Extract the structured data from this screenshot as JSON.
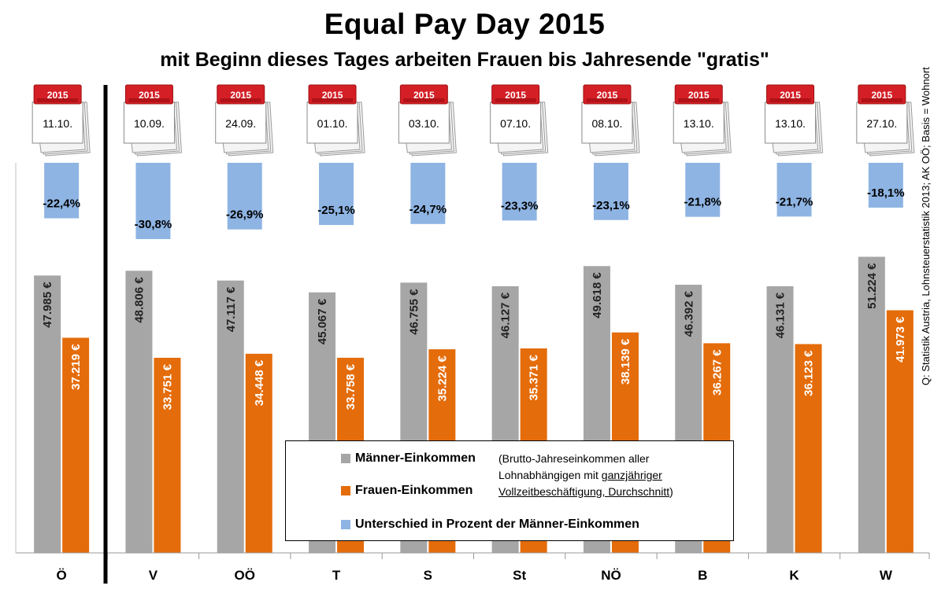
{
  "title": "Equal Pay Day 2015",
  "subtitle": "mit Beginn dieses Tages arbeiten Frauen bis Jahresende \"gratis\"",
  "source": "Q: Statistik Austria, Lohnsteuerstatistik 2013; AK OÖ; Basis = Wohnort",
  "calendar_year": "2015",
  "colors": {
    "men": "#a6a6a6",
    "women": "#e46c0a",
    "diff": "#8eb4e3"
  },
  "chart_data": {
    "type": "bar",
    "categories": [
      "Ö",
      "V",
      "OÖ",
      "T",
      "S",
      "St",
      "NÖ",
      "B",
      "K",
      "W"
    ],
    "dates": [
      "11.10.",
      "10.09.",
      "24.09.",
      "01.10.",
      "03.10.",
      "07.10.",
      "08.10.",
      "13.10.",
      "13.10.",
      "27.10."
    ],
    "series": [
      {
        "name": "Männer-Einkommen",
        "values": [
          47985,
          48806,
          47117,
          45067,
          46755,
          46127,
          49618,
          46392,
          46131,
          51224
        ],
        "labels": [
          "47.985 €",
          "48.806 €",
          "47.117 €",
          "45.067 €",
          "46.755 €",
          "46.127 €",
          "49.618 €",
          "46.392 €",
          "46.131 €",
          "51.224 €"
        ]
      },
      {
        "name": "Frauen-Einkommen",
        "values": [
          37219,
          33751,
          34448,
          33758,
          35224,
          35371,
          38139,
          36267,
          36123,
          41973
        ],
        "labels": [
          "37.219 €",
          "33.751 €",
          "34.448 €",
          "33.758 €",
          "35.224 €",
          "35.371 €",
          "38.139 €",
          "36.267 €",
          "36.123 €",
          "41.973 €"
        ]
      },
      {
        "name": "Unterschied in Prozent der Männer-Einkommen",
        "values": [
          -22.4,
          -30.8,
          -26.9,
          -25.1,
          -24.7,
          -23.3,
          -23.1,
          -21.8,
          -21.7,
          -18.1
        ],
        "labels": [
          "-22,4%",
          "-30,8%",
          "-26,9%",
          "-25,1%",
          "-24,7%",
          "-23,3%",
          "-23,1%",
          "-21,8%",
          "-21,7%",
          "-18,1%"
        ]
      }
    ]
  },
  "legend": {
    "men_label": "Männer-Einkommen",
    "women_label": "Frauen-Einkommen",
    "diff_label": "Unterschied in Prozent der Männer-Einkommen",
    "note_line1": "(Brutto-Jahreseinkommen aller",
    "note_line2_a": "Lohnabhängigen mit ",
    "note_line2_b": "ganzjähriger",
    "note_line3_a": "Vollzeitbeschäftigung, Durchschnitt",
    "note_line3_b": ")"
  }
}
